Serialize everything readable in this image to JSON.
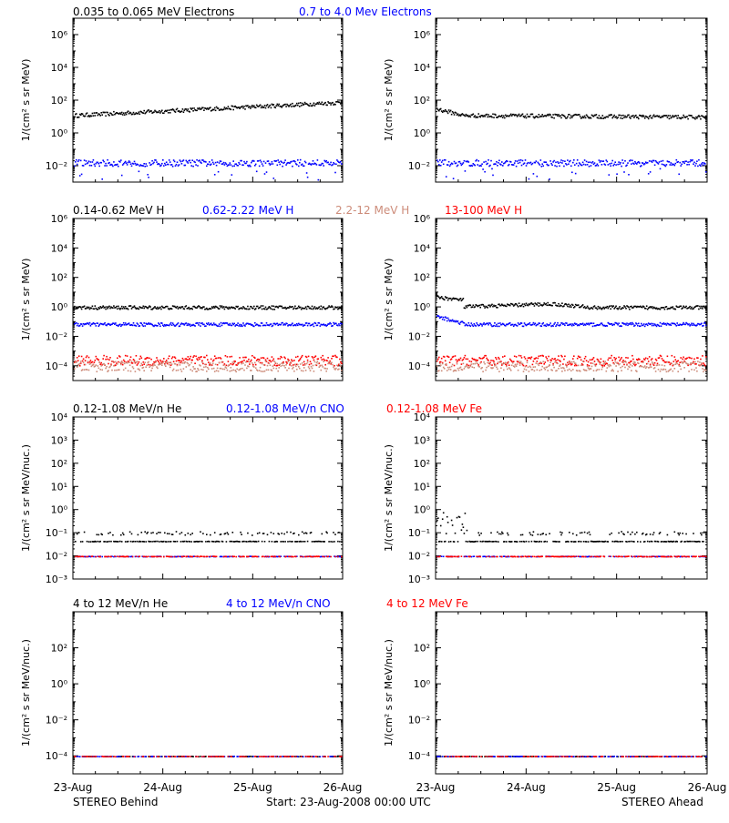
{
  "chart_data": [
    {
      "type": "scatter",
      "title_left": "0.035 to 0.065 MeV Electrons",
      "title_right": "0.7 to 4.0 Mev Electrons",
      "title_left_color": "#000000",
      "title_right_color": "#0000ff",
      "ylabel": "1/(cm² s sr MeV)",
      "yscale": "log",
      "ylim_exp": [
        -3,
        7
      ],
      "ytick_exps": [
        -2,
        0,
        2,
        4,
        6
      ],
      "x_days": [
        0,
        3
      ],
      "series": [
        {
          "color": "#000000",
          "behind_start": 1.1,
          "behind_end": 1.9,
          "ahead_start": 1.5,
          "ahead_mid": 1.1,
          "ahead_end": 1.0
        },
        {
          "color": "#0000ff",
          "behind_start": -1.8,
          "behind_end": -1.8,
          "ahead_start": -1.8,
          "ahead_end": -1.8
        }
      ]
    },
    {
      "type": "scatter",
      "titles": [
        {
          "text": "0.14-0.62 MeV H",
          "color": "#000000"
        },
        {
          "text": "0.62-2.22 MeV H",
          "color": "#0000ff"
        },
        {
          "text": "2.2-12 MeV H",
          "color": "#cd8c7a"
        },
        {
          "text": "13-100 MeV H",
          "color": "#ff0000"
        }
      ],
      "ylabel": "1/(cm² s sr MeV)",
      "yscale": "log",
      "ylim_exp": [
        -5,
        6
      ],
      "ytick_exps": [
        -4,
        -2,
        0,
        2,
        4,
        6
      ],
      "x_days": [
        0,
        3
      ],
      "series": [
        {
          "color": "#000000",
          "behind": 0.0,
          "ahead": 0.0
        },
        {
          "color": "#0000ff",
          "behind": -1.15,
          "ahead": -1.15
        },
        {
          "color": "#ff0000",
          "behind": -3.6,
          "ahead": -3.6
        },
        {
          "color": "#cd8c7a",
          "behind": -4.0,
          "ahead": -4.0
        }
      ]
    },
    {
      "type": "scatter",
      "titles": [
        {
          "text": "0.12-1.08 MeV/n He",
          "color": "#000000"
        },
        {
          "text": "0.12-1.08 MeV/n CNO",
          "color": "#0000ff"
        },
        {
          "text": "0.12-1.08 MeV Fe",
          "color": "#ff0000"
        }
      ],
      "ylabel": "1/(cm² s sr MeV/nuc.)",
      "yscale": "log",
      "ylim_exp": [
        -3,
        4
      ],
      "ytick_exps": [
        -3,
        -2,
        -1,
        0,
        1,
        2,
        3,
        4
      ],
      "x_days": [
        0,
        3
      ],
      "series": [
        {
          "color": "#000000",
          "level": -1.35,
          "upper": -1.0
        },
        {
          "color": "#0000ff",
          "level": -2.0
        },
        {
          "color": "#ff0000",
          "level": -2.0
        }
      ]
    },
    {
      "type": "scatter",
      "titles": [
        {
          "text": "4 to 12 MeV/n He",
          "color": "#000000"
        },
        {
          "text": "4 to 12 MeV/n CNO",
          "color": "#0000ff"
        },
        {
          "text": "4 to 12 MeV Fe",
          "color": "#ff0000"
        }
      ],
      "ylabel": "1/(cm² s sr MeV/nuc.)",
      "yscale": "log",
      "ylim_exp": [
        -5,
        4
      ],
      "ytick_exps": [
        -4,
        -2,
        0,
        2
      ],
      "x_days": [
        0,
        3
      ],
      "series": [
        {
          "color": "#000000",
          "level": -4.0
        },
        {
          "color": "#0000ff",
          "level": -4.0
        },
        {
          "color": "#ff0000",
          "level": -4.0
        }
      ]
    }
  ],
  "x_tick_labels": [
    "23-Aug",
    "24-Aug",
    "25-Aug",
    "26-Aug"
  ],
  "footer": {
    "left": "STEREO Behind",
    "center": "Start: 23-Aug-2008 00:00 UTC",
    "right": "STEREO Ahead"
  }
}
